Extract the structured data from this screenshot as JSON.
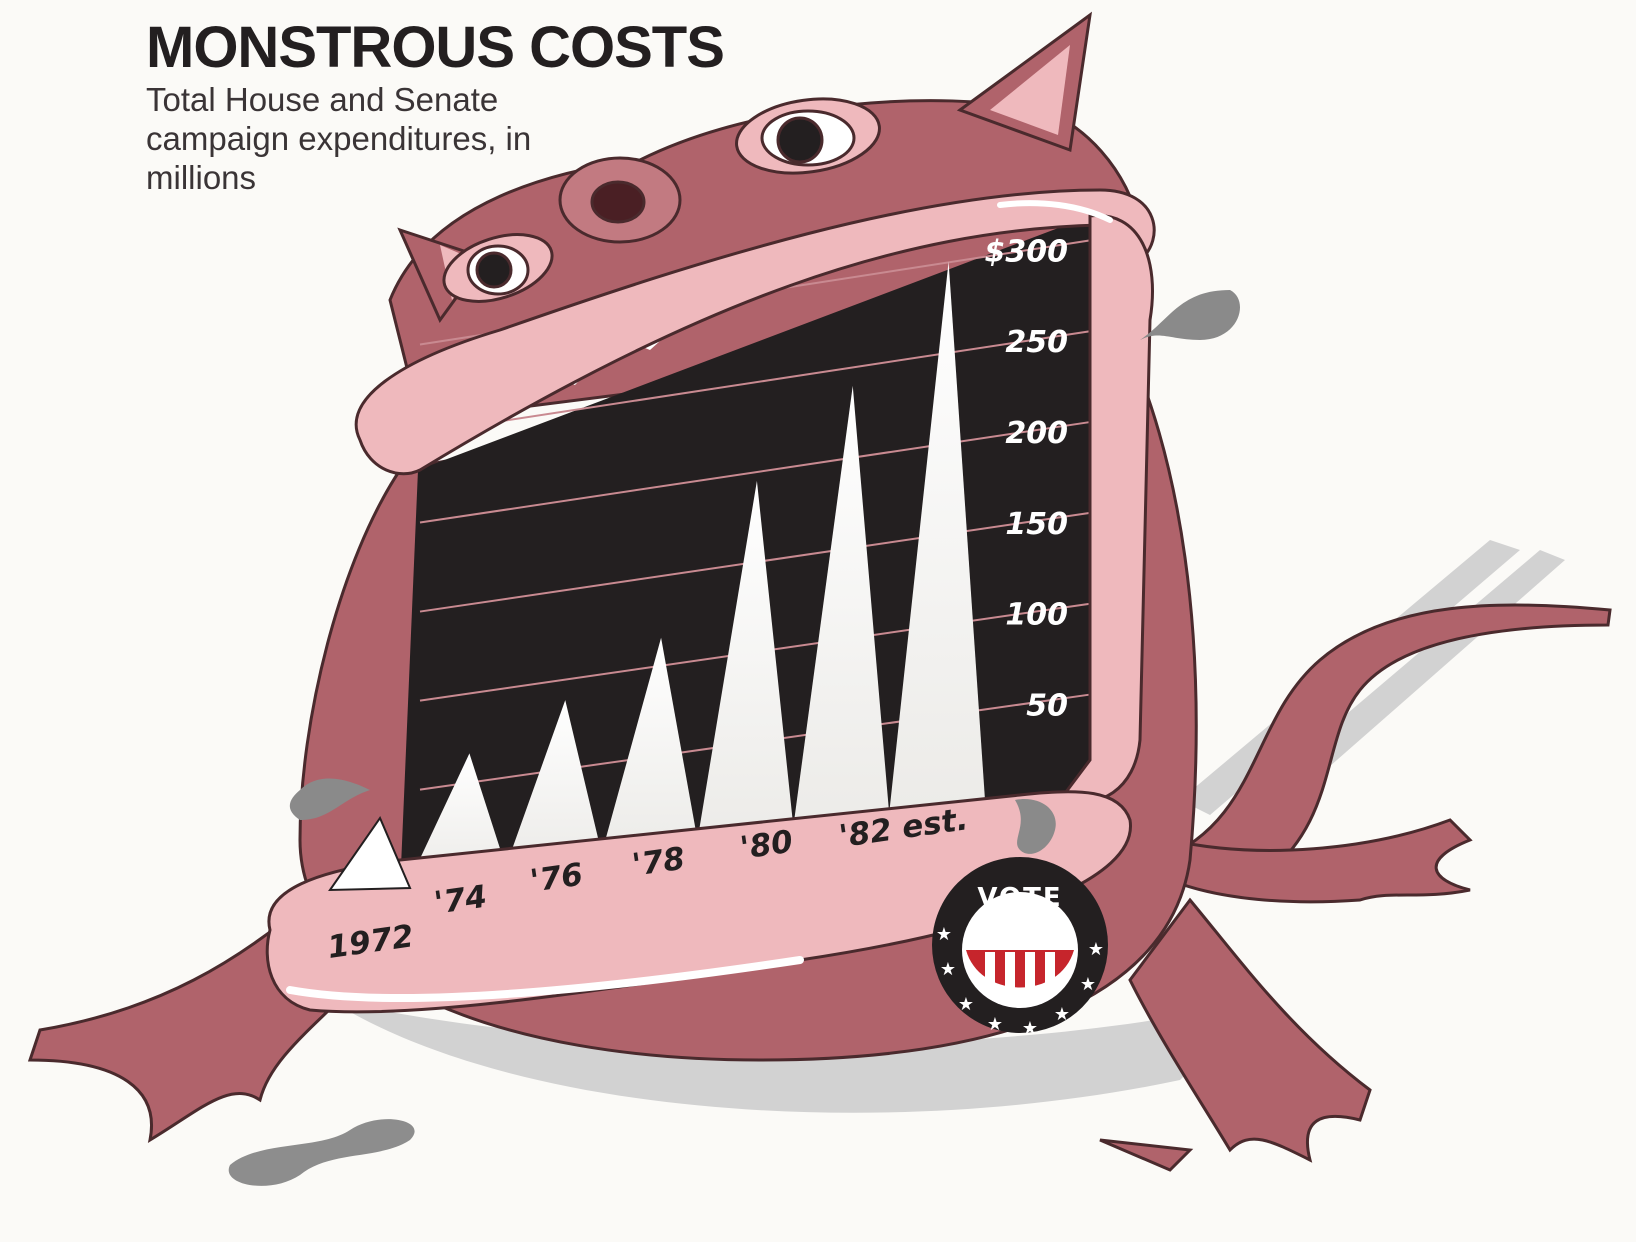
{
  "chart_data": {
    "type": "bar",
    "title": "MONSTROUS COSTS",
    "subtitle": "Total House and Senate campaign expenditures, in millions",
    "categories": [
      "1972",
      "'74",
      "'76",
      "'78",
      "'80",
      "'82 est."
    ],
    "values": [
      66,
      88,
      115,
      194,
      239,
      300
    ],
    "ylim": [
      0,
      300
    ],
    "y_ticks": [
      50,
      100,
      150,
      200,
      250,
      300
    ],
    "y_tick_labels": [
      "50",
      "100",
      "150",
      "200",
      "250",
      "$300"
    ],
    "grid": true,
    "xlabel": "",
    "ylabel": ""
  },
  "badge": {
    "text": "VOTE"
  },
  "colors": {
    "monster_body": "#b0636b",
    "lips": "#efb9bd",
    "mouth": "#231f20",
    "teeth": "#ffffff",
    "shadow": "#cfcfcf"
  }
}
